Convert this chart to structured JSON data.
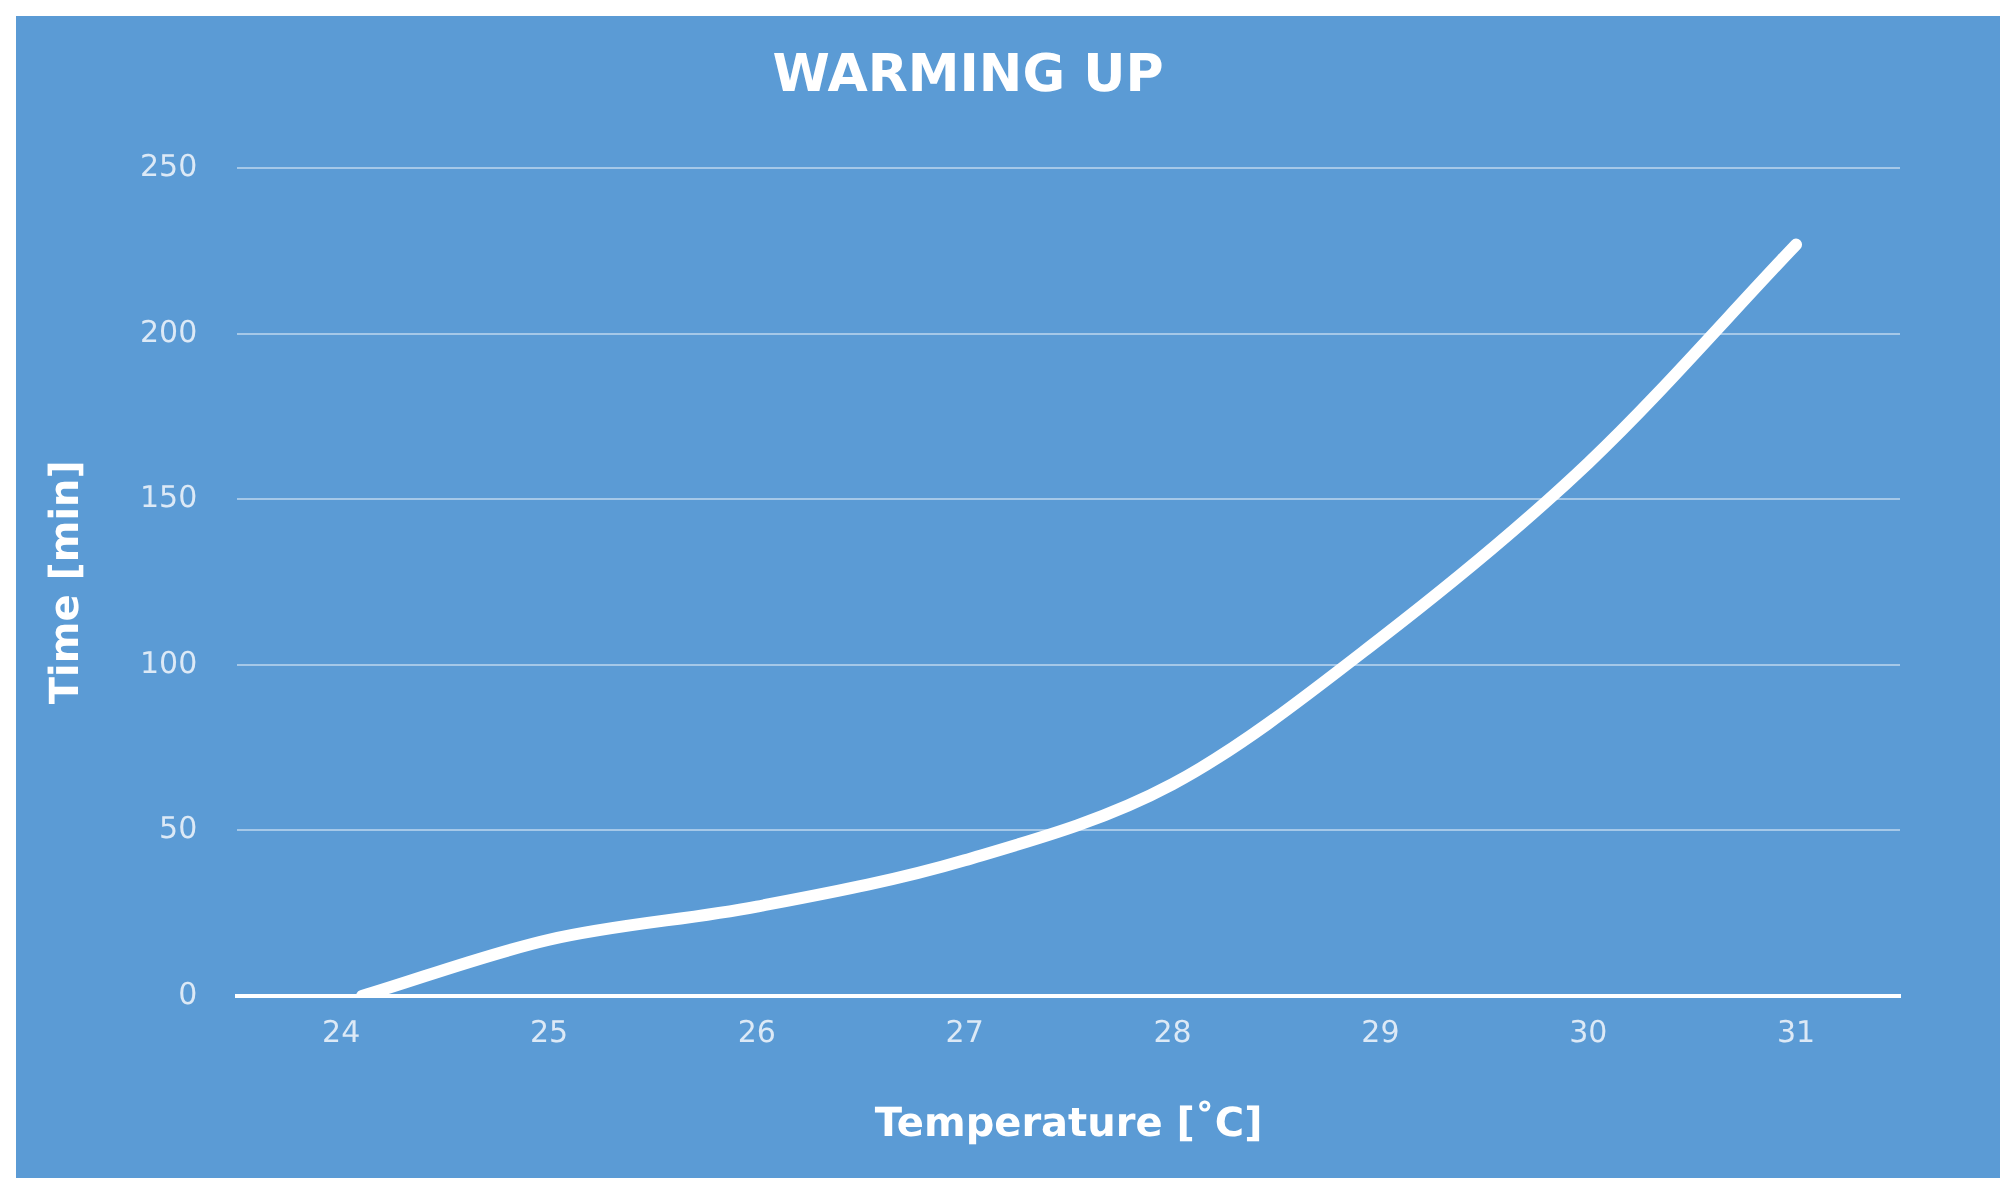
{
  "chart_data": {
    "type": "line",
    "title": "WARMING UP",
    "xlabel": "Temperature [˚C]",
    "ylabel": "Time [min]",
    "x": [
      24.1,
      25,
      26,
      27,
      28,
      29,
      30,
      31
    ],
    "series": [
      {
        "color": "#ffffff",
        "values": [
          0,
          17,
          27,
          41,
          64,
          108,
          161,
          227
        ]
      }
    ],
    "xlim": [
      23.5,
      31.5
    ],
    "xticks": [
      24,
      25,
      26,
      27,
      28,
      29,
      30,
      31
    ],
    "ylim": [
      0,
      250
    ],
    "yticks": [
      0,
      50,
      100,
      150,
      200,
      250
    ],
    "grid": "y",
    "legend": false,
    "marker": "none",
    "line_style": "solid"
  }
}
